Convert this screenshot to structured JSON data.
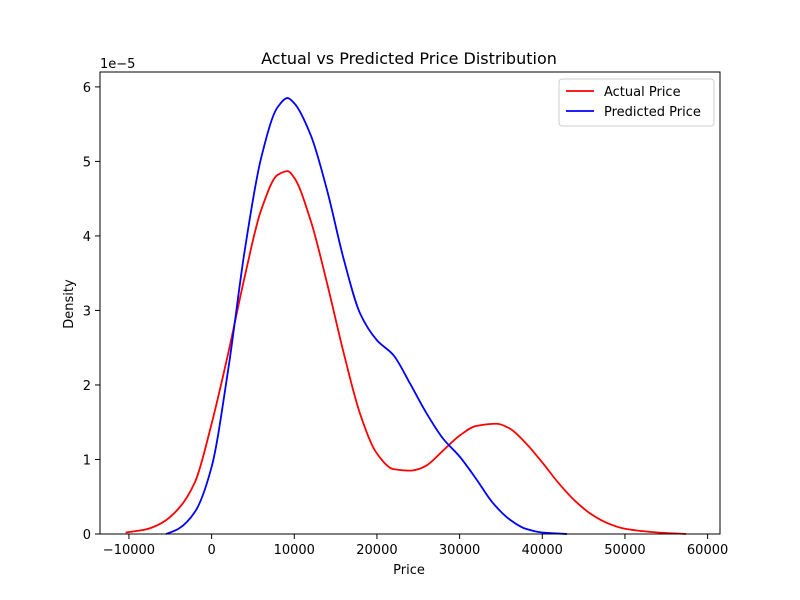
{
  "chart_data": {
    "type": "line",
    "title": "Actual vs Predicted Price Distribution",
    "xlabel": "Price",
    "ylabel": "Density",
    "y_offset_label": "1e−5",
    "xlim": [
      -13500,
      61500
    ],
    "ylim": [
      0,
      6.2
    ],
    "x_ticks": [
      -10000,
      0,
      10000,
      20000,
      30000,
      40000,
      50000,
      60000
    ],
    "x_tick_labels": [
      "−10000",
      "0",
      "10000",
      "20000",
      "30000",
      "40000",
      "50000",
      "60000"
    ],
    "y_ticks": [
      0,
      1,
      2,
      3,
      4,
      5,
      6
    ],
    "y_tick_labels": [
      "0",
      "1",
      "2",
      "3",
      "4",
      "5",
      "6"
    ],
    "grid": false,
    "legend_position": "top-right",
    "series": [
      {
        "name": "Actual Price",
        "color": "#ff0000",
        "x": [
          -10400,
          -8000,
          -6000,
          -4000,
          -2000,
          0,
          2000,
          4000,
          6000,
          8000,
          9200,
          10000,
          12000,
          14000,
          16000,
          18000,
          20000,
          22000,
          24000,
          25000,
          26000,
          28000,
          30000,
          32000,
          34500,
          36000,
          38000,
          40000,
          42000,
          44000,
          46000,
          48000,
          50000,
          52000,
          54000,
          57400
        ],
        "y": [
          0.02,
          0.06,
          0.15,
          0.34,
          0.7,
          1.48,
          2.42,
          3.45,
          4.35,
          4.82,
          4.87,
          4.78,
          4.2,
          3.35,
          2.42,
          1.6,
          1.08,
          0.87,
          0.85,
          0.87,
          0.92,
          1.12,
          1.32,
          1.45,
          1.48,
          1.42,
          1.22,
          0.96,
          0.68,
          0.44,
          0.26,
          0.14,
          0.07,
          0.04,
          0.02,
          0.0
        ]
      },
      {
        "name": "Predicted Price",
        "color": "#0000ff",
        "x": [
          -5500,
          -4000,
          -2000,
          0,
          2000,
          4000,
          6000,
          8000,
          9200,
          10000,
          12000,
          14000,
          16000,
          18000,
          20000,
          22000,
          24000,
          26000,
          28000,
          30000,
          32000,
          34000,
          36000,
          38000,
          40000,
          43000
        ],
        "y": [
          0.0,
          0.07,
          0.3,
          0.9,
          2.2,
          3.8,
          5.05,
          5.73,
          5.85,
          5.78,
          5.35,
          4.6,
          3.68,
          2.95,
          2.6,
          2.4,
          2.02,
          1.62,
          1.28,
          1.04,
          0.74,
          0.42,
          0.2,
          0.07,
          0.02,
          0.0
        ]
      }
    ]
  }
}
